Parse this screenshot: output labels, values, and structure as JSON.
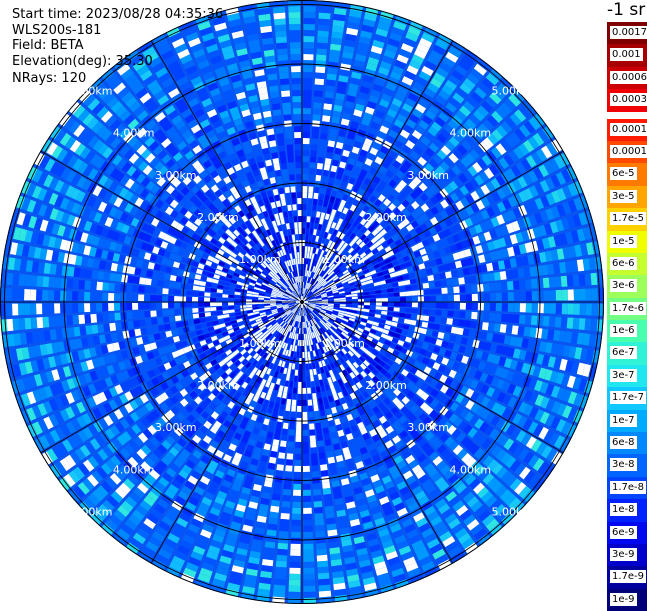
{
  "header": {
    "start_time": "Start time: 2023/08/28 04:35:36",
    "instrument": "WLS200s-181",
    "field": "Field: BETA",
    "elevation": "Elevation(deg): 35.30",
    "nrays": "NRays: 120"
  },
  "colorbar": {
    "title": "-1 sr",
    "upper": [
      {
        "label": "0.0017",
        "color": "#800000"
      },
      {
        "label": "0.001",
        "color": "#a60000"
      },
      {
        "label": "0.0006",
        "color": "#cc0000"
      },
      {
        "label": "0.0003",
        "color": "#f00000"
      }
    ],
    "lower": [
      {
        "label": "0.00017",
        "color": "#ff1a00"
      },
      {
        "label": "0.0001",
        "color": "#ff4a00"
      },
      {
        "label": "6e-5",
        "color": "#ff7a00"
      },
      {
        "label": "3e-5",
        "color": "#ffa500"
      },
      {
        "label": "1.7e-5",
        "color": "#ffd000"
      },
      {
        "label": "1e-5",
        "color": "#f0ff00"
      },
      {
        "label": "6e-6",
        "color": "#c6ff30"
      },
      {
        "label": "3e-6",
        "color": "#9cff5a"
      },
      {
        "label": "1.7e-6",
        "color": "#72ff84"
      },
      {
        "label": "1e-6",
        "color": "#48ffae"
      },
      {
        "label": "6e-7",
        "color": "#30f2d6"
      },
      {
        "label": "3e-7",
        "color": "#20e6f0"
      },
      {
        "label": "1.7e-7",
        "color": "#10c8ff"
      },
      {
        "label": "1e-7",
        "color": "#00aaff"
      },
      {
        "label": "6e-8",
        "color": "#0088ff"
      },
      {
        "label": "3e-8",
        "color": "#0066ff"
      },
      {
        "label": "1.7e-8",
        "color": "#0044ff"
      },
      {
        "label": "1e-8",
        "color": "#0022ff"
      },
      {
        "label": "6e-9",
        "color": "#0008f0"
      },
      {
        "label": "3e-9",
        "color": "#0000cc"
      },
      {
        "label": "1.7e-9",
        "color": "#0000a0"
      },
      {
        "label": "1e-9",
        "color": "#000078"
      }
    ]
  },
  "chart_data": {
    "type": "heatmap",
    "projection": "polar PPI scan",
    "n_rays": 120,
    "range_rings_km": [
      1,
      2,
      3,
      4,
      5
    ],
    "range_max_km": 5.0,
    "ring_labels": [
      "1.00km",
      "2.00km",
      "3.00km",
      "4.00km",
      "5.00km"
    ],
    "field": "BETA",
    "units": "-1 sr",
    "dominant_value_range": [
      1e-09,
      1e-07
    ]
  }
}
